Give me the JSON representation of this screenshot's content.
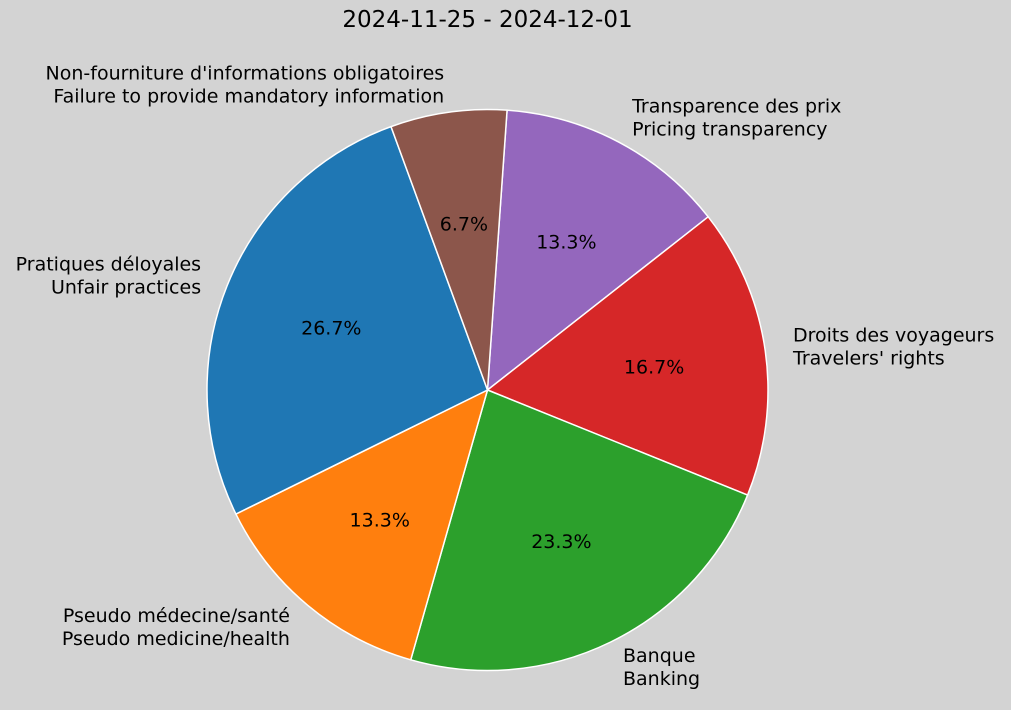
{
  "title": "2024-11-25 - 2024-12-01",
  "background_color": "#d3d3d3",
  "text_color": "#000000",
  "wedge_edge_color": "#ffffff",
  "chart_data": {
    "type": "pie",
    "title": "2024-11-25 - 2024-12-01",
    "start_angle_deg": 86,
    "direction": "clockwise",
    "label_distance": 1.1,
    "pct_distance": 0.6,
    "legend": "none",
    "slices": [
      {
        "label_fr": "Transparence des prix",
        "label_en": "Pricing transparency",
        "percent": 13.3,
        "pct_label": "13.3%",
        "color": "#9467bd"
      },
      {
        "label_fr": "Droits des voyageurs",
        "label_en": "Travelers' rights",
        "percent": 16.7,
        "pct_label": "16.7%",
        "color": "#d62728"
      },
      {
        "label_fr": "Banque",
        "label_en": "Banking",
        "percent": 23.3,
        "pct_label": "23.3%",
        "color": "#2ca02c"
      },
      {
        "label_fr": "Pseudo médecine/santé",
        "label_en": "Pseudo medicine/health",
        "percent": 13.3,
        "pct_label": "13.3%",
        "color": "#ff7f0e"
      },
      {
        "label_fr": "Pratiques déloyales",
        "label_en": "Unfair practices",
        "percent": 26.7,
        "pct_label": "26.7%",
        "color": "#1f77b4"
      },
      {
        "label_fr": "Non-fourniture d'informations obligatoires",
        "label_en": "Failure to provide mandatory information",
        "percent": 6.7,
        "pct_label": "6.7%",
        "color": "#8c564b"
      }
    ]
  }
}
